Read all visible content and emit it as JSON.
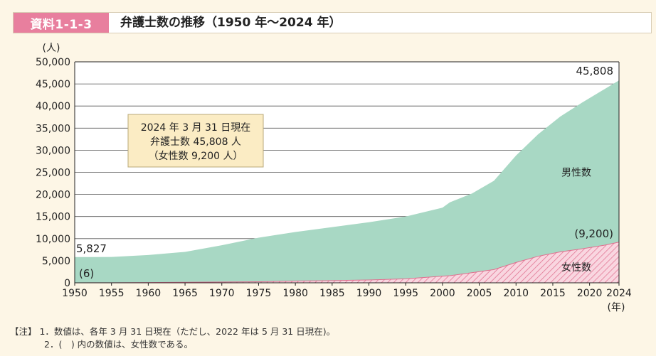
{
  "header": {
    "badge": "資料1-1-3",
    "title": "弁護士数の推移（1950 年〜2024 年）"
  },
  "notes": {
    "line1": "【注】 1．数値は、各年 3 月 31 日現在（ただし、2022 年は 5 月 31 日現在)。",
    "line2": "2．(　) 内の数値は、女性数である。"
  },
  "colors": {
    "male_fill": "#a8d8c4",
    "female_fill": "#f9d6e0",
    "female_hatch": "#e0708f",
    "badge": "#e87f9e",
    "info_box": "#fbecc4"
  },
  "chart_data": {
    "type": "area",
    "ylabel": "(人)",
    "xunit": "(年)",
    "ylim": [
      0,
      50000
    ],
    "xlim": [
      1950,
      2024
    ],
    "yticks": [
      0,
      5000,
      10000,
      15000,
      20000,
      25000,
      30000,
      35000,
      40000,
      45000,
      50000
    ],
    "ytick_labels": [
      "0",
      "5,000",
      "10,000",
      "15,000",
      "20,000",
      "25,000",
      "30,000",
      "35,000",
      "40,000",
      "45,000",
      "50,000"
    ],
    "xticks": [
      1950,
      1955,
      1960,
      1965,
      1970,
      1975,
      1980,
      1985,
      1990,
      1995,
      2000,
      2005,
      2010,
      2015,
      2020,
      2024
    ],
    "grid": true,
    "x": [
      1950,
      1955,
      1960,
      1965,
      1970,
      1975,
      1980,
      1985,
      1990,
      1995,
      2000,
      2001,
      2004,
      2007,
      2010,
      2013,
      2016,
      2019,
      2022,
      2024
    ],
    "series": [
      {
        "name": "男性数",
        "values": [
          5827,
          5850,
          6300,
          7000,
          8500,
          10200,
          11500,
          12600,
          13700,
          15000,
          17000,
          18200,
          20200,
          23100,
          28800,
          33600,
          37600,
          40800,
          43800,
          45808
        ]
      },
      {
        "name": "女性数",
        "values": [
          6,
          20,
          60,
          120,
          180,
          250,
          400,
          500,
          650,
          900,
          1500,
          1600,
          2300,
          3000,
          4600,
          6000,
          7000,
          7700,
          8500,
          9200
        ]
      }
    ],
    "annotations": {
      "start_total": "5,827",
      "start_female": "(6)",
      "end_total": "45,808",
      "end_female": "(9,200)"
    },
    "info_box": [
      "2024 年 3 月 31 日現在",
      "弁護士数 45,808 人",
      "（女性数 9,200 人）"
    ]
  }
}
